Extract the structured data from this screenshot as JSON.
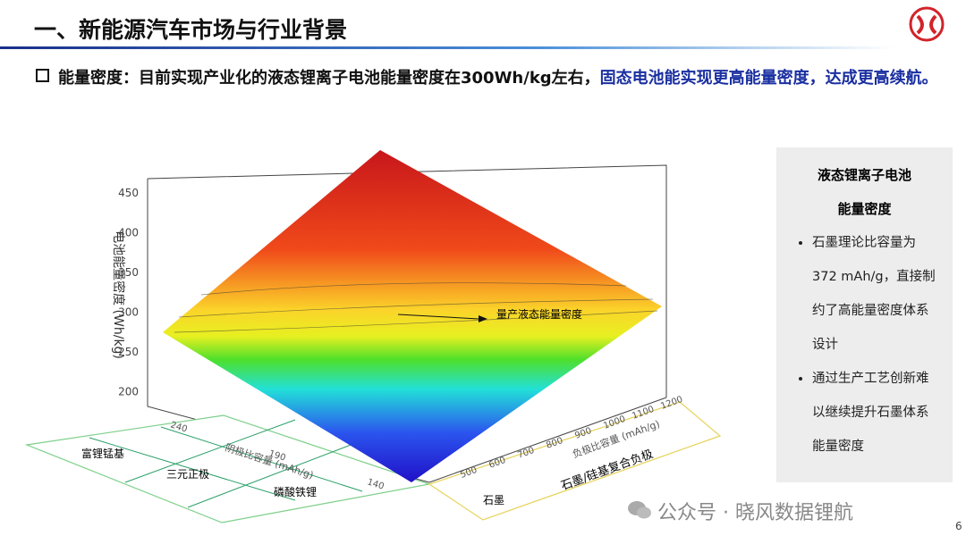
{
  "header": {
    "title": "一、新能源汽车市场与行业背景"
  },
  "bullet": {
    "label": "能量密度：",
    "text": "目前实现产业化的液态锂离子电池能量密度在300Wh/kg左右，",
    "highlight": "固态电池能实现更高能量密度，达成更高续航。"
  },
  "figure": {
    "z_axis_label": "电池能量密度 (Wh/kg)",
    "z_ticks": [
      "450",
      "400",
      "350",
      "300",
      "250",
      "200"
    ],
    "annotation": "量产液态能量密度",
    "left_axis_label": "阴极比容量 (mAh/g)",
    "left_ticks": [
      "240",
      "190",
      "140"
    ],
    "right_axis_label": "负极比容量 (mAh/g)",
    "right_ticks": [
      "1200",
      "1100",
      "1000",
      "900",
      "800",
      "700",
      "600",
      "500"
    ],
    "cathodes": [
      "富锂锰基",
      "三元正极",
      "磷酸铁锂"
    ],
    "anodes": [
      "石墨",
      "石墨/硅基复合负极"
    ]
  },
  "sidebar": {
    "title_lines": [
      "液态锂离子电池",
      "能量密度"
    ],
    "bullets": [
      "石墨理论比容量为372 mAh/g，直接制约了高能量密度体系设计",
      "通过生产工艺创新难以继续提升石墨体系能量密度"
    ]
  },
  "watermark": "公众号 · 晓风数据锂航",
  "page_number": "6"
}
